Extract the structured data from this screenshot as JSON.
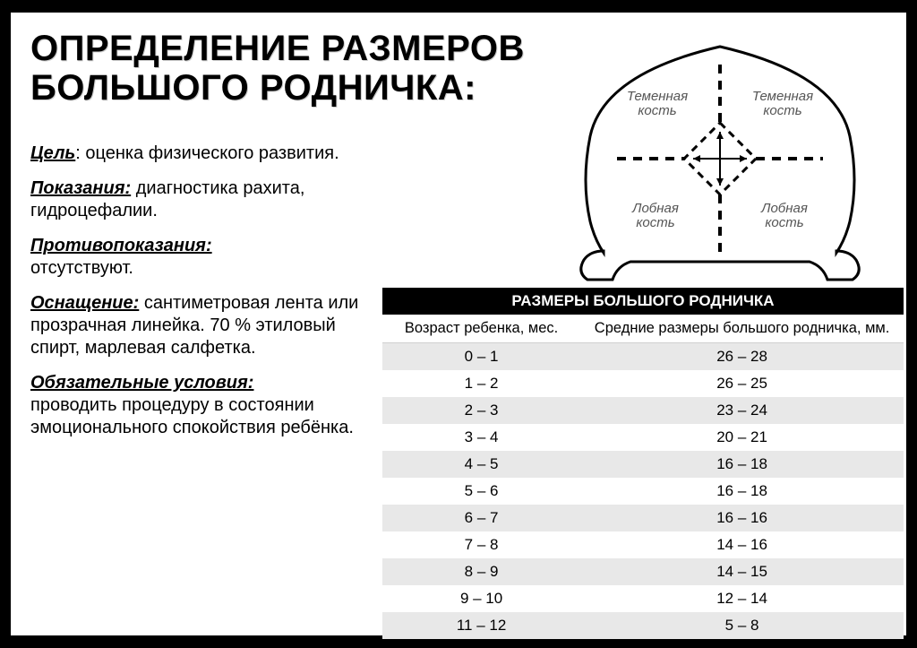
{
  "title": "ОПРЕДЕЛЕНИЕ РАЗМЕРОВ БОЛЬШОГО РОДНИЧКА:",
  "sections": {
    "goal": {
      "label": "Цель",
      "text": ": оценка физического развития."
    },
    "indications": {
      "label": "Показания:",
      "text": " диагностика рахита, гидроцефалии."
    },
    "contra": {
      "label": "Противопоказания:",
      "text": " отсутствуют."
    },
    "equipment": {
      "label": "Оснащение:",
      "text": " сантиметровая лента или прозрачная линейка. 70 % этиловый спирт, марлевая салфетка."
    },
    "conditions": {
      "label": "Обязательные условия:",
      "text": " проводить процедуру в состоянии эмоционального спокойствия ребёнка."
    }
  },
  "diagram": {
    "labels": {
      "parietal_left": "Теменная\nкость",
      "parietal_right": "Теменная\nкость",
      "frontal_left": "Лобная\nкость",
      "frontal_right": "Лобная\nкость"
    },
    "colors": {
      "outline": "#000000",
      "fill": "#ffffff",
      "dash": "#000000",
      "label": "#555555"
    }
  },
  "table": {
    "title": "РАЗМЕРЫ БОЛЬШОГО РОДНИЧКА",
    "columns": [
      "Возраст ребенка, мес.",
      "Средние размеры большого родничка, мм."
    ],
    "rows": [
      [
        "0 – 1",
        "26 – 28"
      ],
      [
        "1 – 2",
        "26 – 25"
      ],
      [
        "2 – 3",
        "23 – 24"
      ],
      [
        "3 – 4",
        "20 – 21"
      ],
      [
        "4 – 5",
        "16 – 18"
      ],
      [
        "5 – 6",
        "16 – 18"
      ],
      [
        "6 – 7",
        "16 – 16"
      ],
      [
        "7 – 8",
        "14 – 16"
      ],
      [
        "8 – 9",
        "14 – 15"
      ],
      [
        "9 – 10",
        "12 – 14"
      ],
      [
        "11 – 12",
        "5 – 8"
      ]
    ],
    "colors": {
      "header_bg": "#000000",
      "header_fg": "#ffffff",
      "row_even": "#e8e8e8",
      "row_odd": "#ffffff"
    }
  }
}
